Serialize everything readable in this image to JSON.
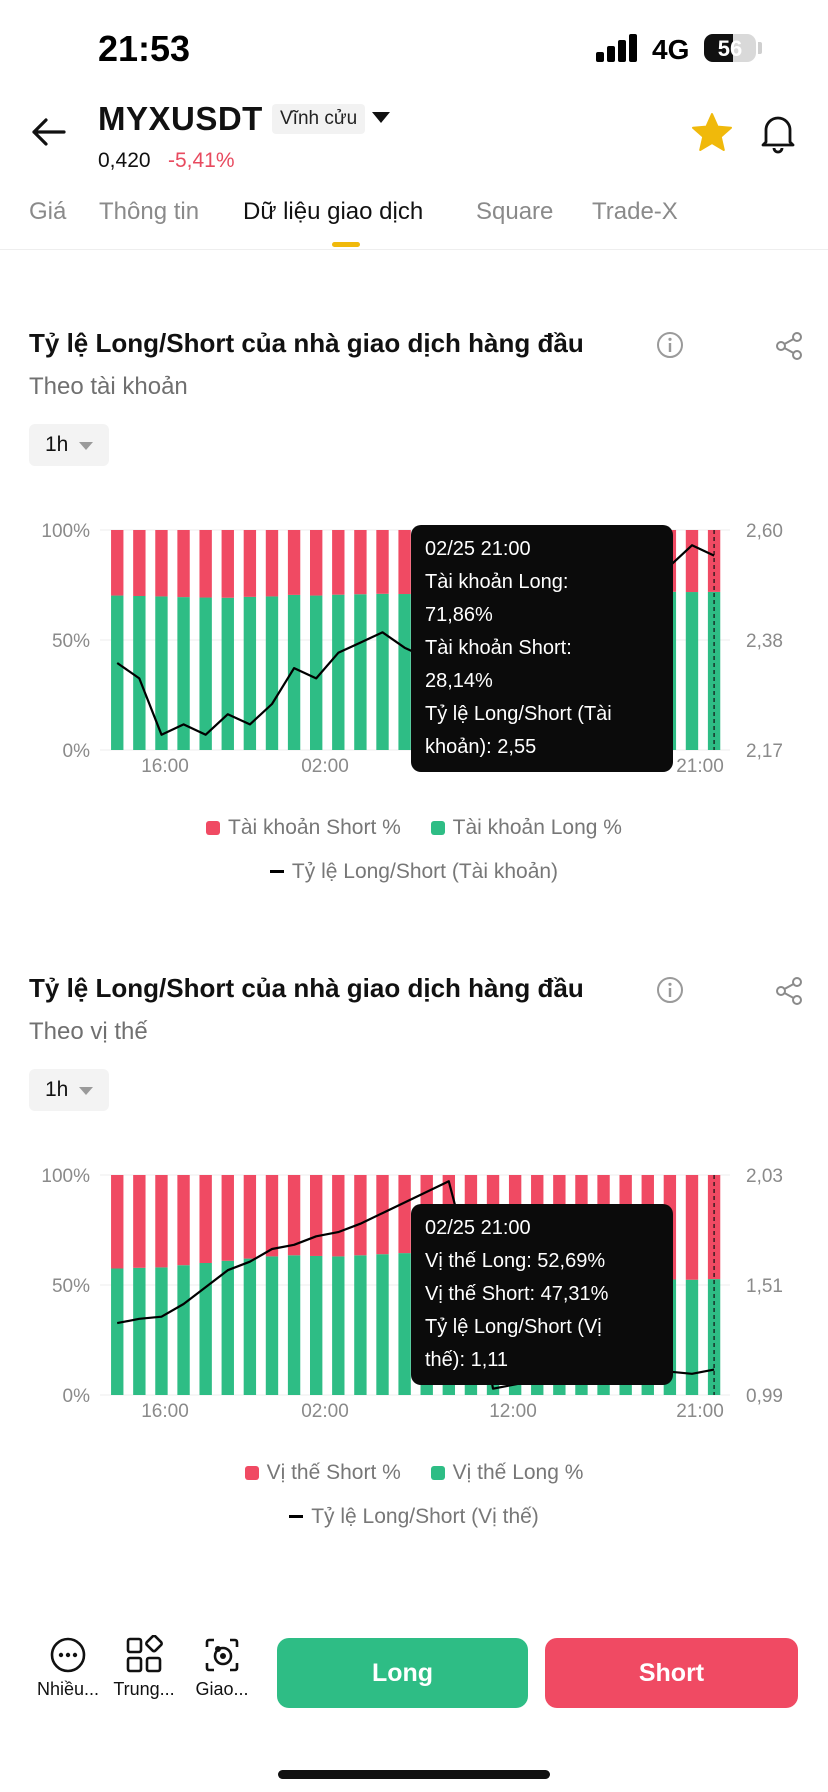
{
  "status_bar": {
    "time": "21:53",
    "network": "4G",
    "battery": "56",
    "battery_level": 0.56
  },
  "header": {
    "symbol": "MYXUSDT",
    "contract_type": "Vĩnh cửu",
    "price": "0,420",
    "change": "-5,41%"
  },
  "tabs": [
    {
      "label": "Giá",
      "active": false
    },
    {
      "label": "Thông tin",
      "active": false
    },
    {
      "label": "Dữ liệu giao dịch",
      "active": true
    },
    {
      "label": "Square",
      "active": false
    },
    {
      "label": "Trade-X",
      "active": false
    }
  ],
  "colors": {
    "short": "#f04a63",
    "long": "#2ebd85",
    "ratio_line": "#000000",
    "brand": "#f0b90b",
    "negative": "#e84a5f"
  },
  "sections": [
    {
      "title": "Tỷ lệ Long/Short của nhà giao dịch hàng đầu",
      "subtitle": "Theo tài khoản",
      "interval": "1h",
      "tooltip": {
        "lines": [
          "02/25 21:00",
          "Tài khoản Long:",
          "71,86%",
          "Tài khoản Short:",
          "28,14%",
          "Tỷ lệ Long/Short (Tài",
          "khoản): 2,55"
        ]
      },
      "legend": {
        "short": "Tài khoản Short %",
        "long": "Tài khoản Long %",
        "ratio": "Tỷ lệ Long/Short (Tài khoản)"
      }
    },
    {
      "title": "Tỷ lệ Long/Short của nhà giao dịch hàng đầu",
      "subtitle": "Theo vị thế",
      "interval": "1h",
      "tooltip": {
        "lines": [
          "02/25 21:00",
          "Vị thế Long: 52,69%",
          "Vị thế Short: 47,31%",
          "Tỷ lệ Long/Short (Vị",
          "thế): 1,11"
        ]
      },
      "legend": {
        "short": "Vị thế Short %",
        "long": "Vị thế Long %",
        "ratio": "Tỷ lệ Long/Short (Vị thế)"
      }
    }
  ],
  "chart_data": [
    {
      "type": "bar",
      "title": "Tỷ lệ Long/Short của nhà giao dịch hàng đầu",
      "subtitle": "Theo tài khoản",
      "x_ticks": [
        "16:00",
        "02:00",
        "12:00",
        "21:00"
      ],
      "y_left_ticks": [
        "100%",
        "50%",
        "0%"
      ],
      "y_right_ticks": [
        "2,60",
        "2,38",
        "2,17"
      ],
      "ylim_left": [
        0,
        100
      ],
      "ylim_right": [
        2.17,
        2.6
      ],
      "series": [
        {
          "name": "Tài khoản Long %",
          "values": [
            70.2,
            70.0,
            69.8,
            69.5,
            69.3,
            69.2,
            69.6,
            69.8,
            70.5,
            70.2,
            70.6,
            70.8,
            71.0,
            70.9,
            70.6,
            71.0,
            71.2,
            71.3,
            71.1,
            71.0,
            71.4,
            71.5,
            71.6,
            71.8,
            71.7,
            71.9,
            71.8,
            71.86
          ]
        },
        {
          "name": "Tài khoản Short %",
          "values": [
            29.8,
            30.0,
            30.2,
            30.5,
            30.7,
            30.8,
            30.4,
            30.2,
            29.5,
            29.8,
            29.4,
            29.2,
            29.0,
            29.1,
            29.4,
            29.0,
            28.8,
            28.7,
            28.9,
            29.0,
            28.6,
            28.5,
            28.4,
            28.2,
            28.3,
            28.1,
            28.2,
            28.14
          ]
        },
        {
          "name": "Tỷ lệ Long/Short (Tài khoản)",
          "values": [
            2.34,
            2.31,
            2.2,
            2.22,
            2.2,
            2.24,
            2.22,
            2.26,
            2.33,
            2.31,
            2.36,
            2.38,
            2.4,
            2.37,
            2.35,
            2.38,
            2.4,
            2.41,
            2.42,
            2.43,
            2.44,
            2.46,
            2.48,
            2.52,
            2.5,
            2.53,
            2.57,
            2.55
          ]
        }
      ],
      "legend": "bottom"
    },
    {
      "type": "bar",
      "title": "Tỷ lệ Long/Short của nhà giao dịch hàng đầu",
      "subtitle": "Theo vị thế",
      "x_ticks": [
        "16:00",
        "02:00",
        "12:00",
        "21:00"
      ],
      "y_left_ticks": [
        "100%",
        "50%",
        "0%"
      ],
      "y_right_ticks": [
        "2,03",
        "1,51",
        "0,99"
      ],
      "ylim_left": [
        0,
        100
      ],
      "ylim_right": [
        0.99,
        2.03
      ],
      "series": [
        {
          "name": "Vị thế Long %",
          "values": [
            57.5,
            57.8,
            58.0,
            59.0,
            60.0,
            61.0,
            62.0,
            63.0,
            63.5,
            63.2,
            63.0,
            63.5,
            64.0,
            64.5,
            65.0,
            62.0,
            58.0,
            52.0,
            51.5,
            52.0,
            52.5,
            52.4,
            52.5,
            52.6,
            52.6,
            52.5,
            52.4,
            52.69
          ]
        },
        {
          "name": "Vị thế Short %",
          "values": [
            42.5,
            42.2,
            42.0,
            41.0,
            40.0,
            39.0,
            38.0,
            37.0,
            36.5,
            36.8,
            37.0,
            36.5,
            36.0,
            35.5,
            35.0,
            38.0,
            42.0,
            48.0,
            48.5,
            48.0,
            47.5,
            47.6,
            47.5,
            47.4,
            47.4,
            47.5,
            47.6,
            47.31
          ]
        },
        {
          "name": "Tỷ lệ Long/Short (Vị thế)",
          "values": [
            1.33,
            1.35,
            1.36,
            1.42,
            1.5,
            1.58,
            1.62,
            1.68,
            1.7,
            1.74,
            1.76,
            1.8,
            1.85,
            1.9,
            1.95,
            2.0,
            1.6,
            1.02,
            1.04,
            1.06,
            1.08,
            1.09,
            1.1,
            1.11,
            1.1,
            1.1,
            1.09,
            1.11
          ]
        }
      ],
      "legend": "bottom"
    }
  ],
  "bottom_nav": {
    "items": [
      {
        "label": "Nhiều...",
        "icon": "more-dots-icon"
      },
      {
        "label": "Trung...",
        "icon": "grid-center-icon"
      },
      {
        "label": "Giao...",
        "icon": "copy-trade-icon"
      }
    ],
    "long_label": "Long",
    "short_label": "Short"
  }
}
